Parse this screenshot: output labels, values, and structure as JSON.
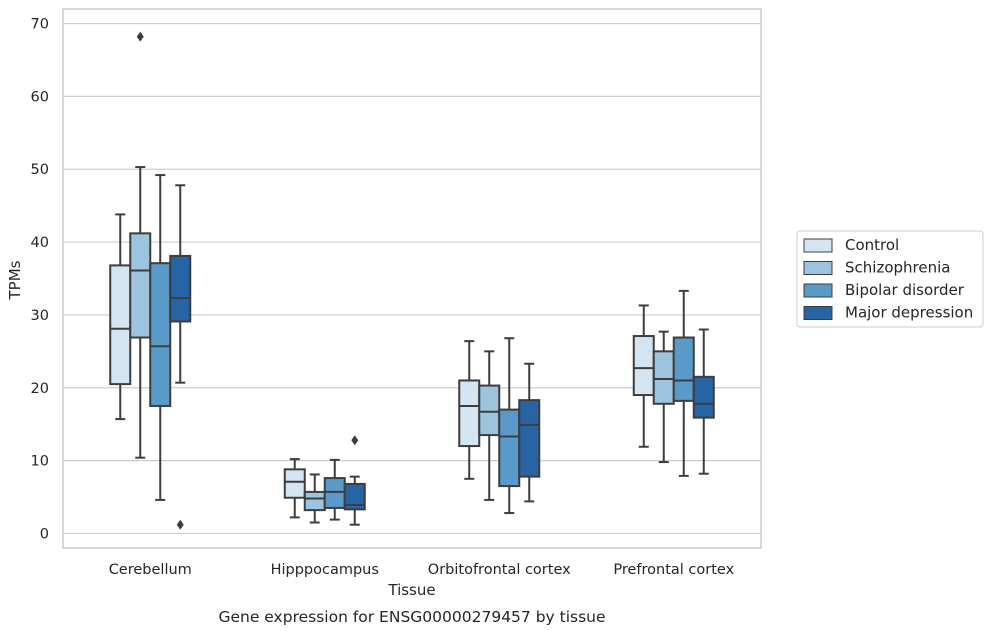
{
  "caption": "Gene expression for ENSG00000279457 by tissue",
  "chart_data": {
    "type": "box",
    "xlabel": "Tissue",
    "ylabel": "TPMs",
    "ylim": [
      -2,
      72
    ],
    "yticks": [
      0,
      10,
      20,
      30,
      40,
      50,
      60,
      70
    ],
    "grid": true,
    "legend_position": "right",
    "categories": [
      "Cerebellum",
      "Hipppocampus",
      "Orbitofrontal cortex",
      "Prefrontal cortex"
    ],
    "series": [
      {
        "name": "Control",
        "color": "#d5e4f1",
        "boxes": [
          {
            "whisker_low": 15.7,
            "q1": 20.5,
            "median": 28.1,
            "q3": 36.8,
            "whisker_high": 43.8,
            "outliers": []
          },
          {
            "whisker_low": 2.2,
            "q1": 4.9,
            "median": 7.1,
            "q3": 8.8,
            "whisker_high": 10.2,
            "outliers": []
          },
          {
            "whisker_low": 7.5,
            "q1": 12.0,
            "median": 17.5,
            "q3": 21.0,
            "whisker_high": 26.4,
            "outliers": []
          },
          {
            "whisker_low": 11.9,
            "q1": 19.0,
            "median": 22.7,
            "q3": 27.1,
            "whisker_high": 31.3,
            "outliers": []
          }
        ]
      },
      {
        "name": "Schizophrenia",
        "color": "#9cc4df",
        "boxes": [
          {
            "whisker_low": 10.4,
            "q1": 26.9,
            "median": 36.1,
            "q3": 41.2,
            "whisker_high": 50.3,
            "outliers": [
              68.2
            ]
          },
          {
            "whisker_low": 1.5,
            "q1": 3.2,
            "median": 4.8,
            "q3": 5.7,
            "whisker_high": 8.1,
            "outliers": []
          },
          {
            "whisker_low": 4.6,
            "q1": 13.5,
            "median": 16.7,
            "q3": 20.3,
            "whisker_high": 25.0,
            "outliers": []
          },
          {
            "whisker_low": 9.8,
            "q1": 17.8,
            "median": 21.2,
            "q3": 25.0,
            "whisker_high": 27.7,
            "outliers": []
          }
        ]
      },
      {
        "name": "Bipolar disorder",
        "color": "#5a9ac8",
        "boxes": [
          {
            "whisker_low": 4.6,
            "q1": 17.5,
            "median": 25.7,
            "q3": 37.1,
            "whisker_high": 49.2,
            "outliers": []
          },
          {
            "whisker_low": 1.9,
            "q1": 3.5,
            "median": 5.7,
            "q3": 7.6,
            "whisker_high": 10.1,
            "outliers": []
          },
          {
            "whisker_low": 2.8,
            "q1": 6.5,
            "median": 13.3,
            "q3": 17.0,
            "whisker_high": 26.8,
            "outliers": []
          },
          {
            "whisker_low": 7.9,
            "q1": 18.2,
            "median": 21.0,
            "q3": 26.9,
            "whisker_high": 33.3,
            "outliers": []
          }
        ]
      },
      {
        "name": "Major depression",
        "color": "#2764a6",
        "boxes": [
          {
            "whisker_low": 20.7,
            "q1": 29.1,
            "median": 32.3,
            "q3": 38.1,
            "whisker_high": 47.8,
            "outliers": [
              1.2
            ]
          },
          {
            "whisker_low": 1.2,
            "q1": 3.3,
            "median": 3.9,
            "q3": 6.8,
            "whisker_high": 7.8,
            "outliers": [
              12.8
            ]
          },
          {
            "whisker_low": 4.4,
            "q1": 7.8,
            "median": 14.9,
            "q3": 18.3,
            "whisker_high": 23.3,
            "outliers": []
          },
          {
            "whisker_low": 8.2,
            "q1": 15.9,
            "median": 17.8,
            "q3": 21.5,
            "whisker_high": 28.0,
            "outliers": []
          }
        ]
      }
    ]
  }
}
